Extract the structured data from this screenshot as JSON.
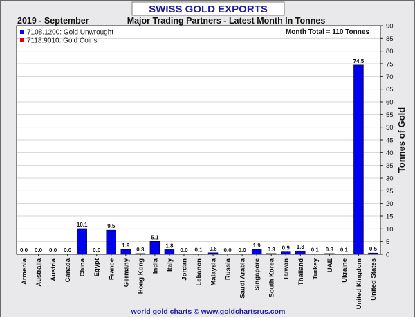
{
  "chart_data": {
    "type": "bar",
    "title": "SWISS GOLD EXPORTS",
    "period": "2019 - September",
    "subtitle": "Major Trading Partners - Latest Month In Tonnes",
    "total_note": "Month Total = 110 Tonnes",
    "ylabel": "Tonnes of Gold",
    "ylim": [
      0,
      90
    ],
    "yticks": [
      "0",
      "5",
      "10",
      "15",
      "20",
      "25",
      "30",
      "35",
      "40",
      "45",
      "50",
      "55",
      "60",
      "65",
      "70",
      "75",
      "80",
      "85",
      "90"
    ],
    "categories": [
      "Armenia",
      "Australia",
      "Austria",
      "Canada",
      "China",
      "Egypt",
      "France",
      "Germany",
      "Hong Kong",
      "India",
      "Italy",
      "Jordan",
      "Lebanon",
      "Malaysia",
      "Russia",
      "Saudi Arabia",
      "Singapore",
      "South Korea",
      "Taiwan",
      "Thailand",
      "Turkey",
      "UAE",
      "Ukraine",
      "United Kingdom",
      "United States"
    ],
    "values": [
      0.0,
      0.0,
      0.0,
      0.0,
      10.1,
      0.0,
      9.5,
      1.9,
      0.3,
      5.1,
      1.8,
      0.0,
      0.1,
      0.6,
      0.0,
      0.0,
      1.9,
      0.3,
      0.9,
      1.3,
      0.1,
      0.3,
      0.1,
      74.5,
      0.5
    ],
    "value_labels": [
      "0.0",
      "0.0",
      "0.0",
      "0.0",
      "10.1",
      "0.0",
      "9.5",
      "1.9",
      "0.3",
      "5.1",
      "1.8",
      "0.0",
      "0.1",
      "0.6",
      "0.0",
      "0.0",
      "1.9",
      "0.3",
      "0.9",
      "1.3",
      "0.1",
      "0.3",
      "0.1",
      "74.5",
      "0.5"
    ],
    "series": [
      {
        "name": "7108.1200: Gold Unwrought",
        "color": "#0000ee"
      },
      {
        "name": "7118.9010: Gold Coins",
        "color": "#dd0000"
      }
    ],
    "legend_position": "top-left",
    "grid": true,
    "footer": "world gold charts © www.goldchartsrus.com"
  }
}
